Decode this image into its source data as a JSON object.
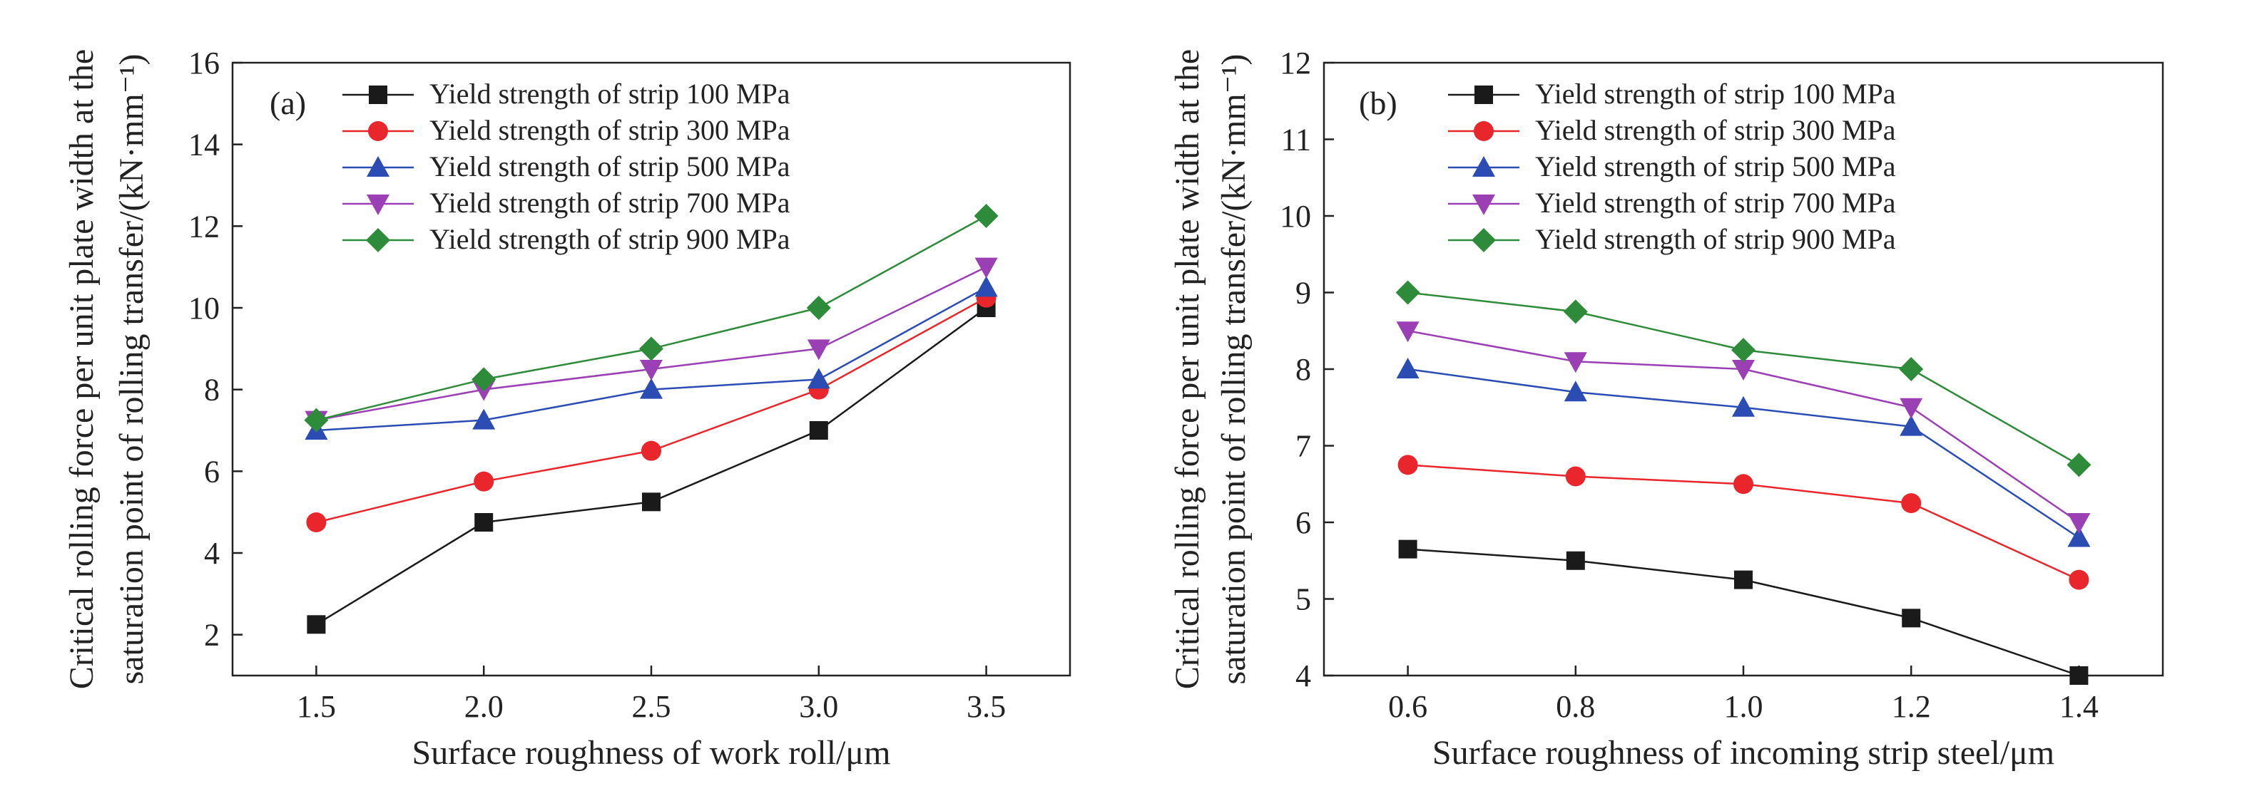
{
  "chart_data": [
    {
      "type": "line",
      "panel_label": "(a)",
      "xlabel": "Surface roughness of work roll/μm",
      "ylabel_line1": "Critical rolling force per unit plate width at the",
      "ylabel_line2": "saturation point of rolling transfer/(kN·mm⁻¹)",
      "x": [
        1.5,
        2.0,
        2.5,
        3.0,
        3.5
      ],
      "x_ticks": [
        "1.5",
        "2.0",
        "2.5",
        "3.0",
        "3.5"
      ],
      "xlim": [
        1.25,
        3.75
      ],
      "y_ticks": [
        "2",
        "4",
        "6",
        "8",
        "10",
        "12",
        "14",
        "16"
      ],
      "ylim": [
        1,
        16
      ],
      "legend_position": "top-center",
      "series": [
        {
          "name": "Yield strength of strip 100 MPa",
          "values": [
            2.25,
            4.75,
            5.25,
            7.0,
            10.0
          ],
          "color": "#1a1a1a",
          "marker": "square"
        },
        {
          "name": "Yield strength of strip 300 MPa",
          "values": [
            4.75,
            5.75,
            6.5,
            8.0,
            10.25
          ],
          "color": "#e8262b",
          "marker": "circle"
        },
        {
          "name": "Yield strength of strip 500 MPa",
          "values": [
            7.0,
            7.25,
            8.0,
            8.25,
            10.5
          ],
          "color": "#2b4db3",
          "marker": "triangle-up"
        },
        {
          "name": "Yield strength of strip 700 MPa",
          "values": [
            7.25,
            8.0,
            8.5,
            9.0,
            11.0
          ],
          "color": "#9b3fb5",
          "marker": "triangle-down"
        },
        {
          "name": "Yield strength of strip 900 MPa",
          "values": [
            7.25,
            8.25,
            9.0,
            10.0,
            12.25
          ],
          "color": "#2e8b3a",
          "marker": "diamond"
        }
      ]
    },
    {
      "type": "line",
      "panel_label": "(b)",
      "xlabel": "Surface roughness of incoming strip steel/μm",
      "ylabel_line1": "Critical rolling force per unit plate width at the",
      "ylabel_line2": "saturation point of rolling transfer/(kN·mm⁻¹)",
      "x": [
        0.6,
        0.8,
        1.0,
        1.2,
        1.4
      ],
      "x_ticks": [
        "0.6",
        "0.8",
        "1.0",
        "1.2",
        "1.4"
      ],
      "xlim": [
        0.5,
        1.5
      ],
      "y_ticks": [
        "4",
        "5",
        "6",
        "7",
        "8",
        "9",
        "10",
        "11",
        "12"
      ],
      "ylim": [
        4,
        12
      ],
      "legend_position": "top-center",
      "series": [
        {
          "name": "Yield strength of strip 100 MPa",
          "values": [
            5.65,
            5.5,
            5.25,
            4.75,
            4.0
          ],
          "color": "#1a1a1a",
          "marker": "square"
        },
        {
          "name": "Yield strength of strip 300 MPa",
          "values": [
            6.75,
            6.6,
            6.5,
            6.25,
            5.25
          ],
          "color": "#e8262b",
          "marker": "circle"
        },
        {
          "name": "Yield strength of strip 500 MPa",
          "values": [
            8.0,
            7.7,
            7.5,
            7.25,
            5.8
          ],
          "color": "#2b4db3",
          "marker": "triangle-up"
        },
        {
          "name": "Yield strength of strip 700 MPa",
          "values": [
            8.5,
            8.1,
            8.0,
            7.5,
            6.0
          ],
          "color": "#9b3fb5",
          "marker": "triangle-down"
        },
        {
          "name": "Yield strength of strip 900 MPa",
          "values": [
            9.0,
            8.75,
            8.25,
            8.0,
            6.75
          ],
          "color": "#2e8b3a",
          "marker": "diamond"
        }
      ]
    }
  ]
}
